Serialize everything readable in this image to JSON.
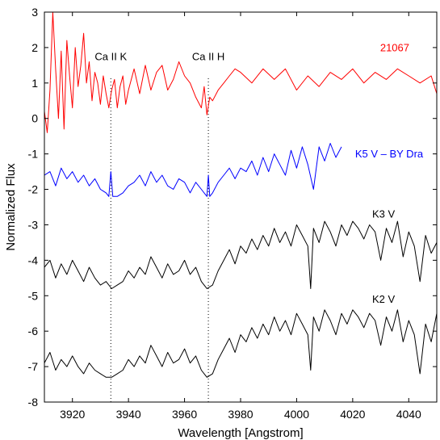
{
  "chart_data": {
    "type": "line",
    "xlabel": "Wavelength [Angstrom]",
    "ylabel": "Normalized Flux",
    "xlim": [
      3910,
      4050
    ],
    "ylim": [
      -8,
      3
    ],
    "xticks": [
      3920,
      3940,
      3960,
      3980,
      4000,
      4020,
      4040
    ],
    "yticks": [
      3,
      2,
      1,
      0,
      -1,
      -2,
      -3,
      -4,
      -5,
      -6,
      -7,
      -8
    ],
    "grid": false,
    "annotations": [
      {
        "text": "Ca II K",
        "x": 3933.7,
        "y": 1.65
      },
      {
        "text": "Ca II H",
        "x": 3968.5,
        "y": 1.65
      }
    ],
    "reference_lines": [
      {
        "x": 3933.7,
        "y_from": -8,
        "y_to": 1.15,
        "style": "dotted"
      },
      {
        "x": 3968.5,
        "y_from": -8,
        "y_to": 1.15,
        "style": "dotted"
      }
    ],
    "series": [
      {
        "name": "21067",
        "color": "#ff0000",
        "label_pos": [
          4035,
          1.9
        ],
        "x": [
          3910,
          3911,
          3912,
          3913,
          3914,
          3915,
          3916,
          3917,
          3918,
          3919,
          3920,
          3921,
          3922,
          3923,
          3924,
          3925,
          3926,
          3927,
          3928,
          3929,
          3930,
          3931,
          3932,
          3933,
          3934,
          3935,
          3936,
          3937,
          3938,
          3939,
          3940,
          3942,
          3944,
          3946,
          3948,
          3950,
          3952,
          3954,
          3956,
          3958,
          3960,
          3962,
          3964,
          3966,
          3967,
          3968,
          3969,
          3970,
          3972,
          3974,
          3976,
          3978,
          3980,
          3984,
          3988,
          3992,
          3996,
          4000,
          4004,
          4008,
          4012,
          4016,
          4020,
          4024,
          4028,
          4032,
          4036,
          4040,
          4044,
          4048,
          4050
        ],
        "values": [
          0.2,
          -0.4,
          0.8,
          3.0,
          1.4,
          0.0,
          1.9,
          -0.3,
          2.2,
          1.2,
          0.3,
          2.0,
          0.9,
          1.5,
          2.4,
          1.0,
          1.6,
          0.5,
          1.3,
          1.0,
          0.4,
          1.2,
          0.7,
          0.3,
          0.8,
          1.1,
          0.3,
          0.9,
          1.2,
          0.4,
          0.8,
          1.4,
          0.7,
          1.5,
          0.8,
          1.3,
          1.5,
          0.8,
          1.1,
          1.6,
          1.2,
          1.0,
          0.6,
          0.3,
          0.9,
          0.1,
          0.6,
          0.5,
          0.8,
          1.0,
          1.2,
          1.4,
          1.3,
          1.0,
          1.4,
          1.1,
          1.4,
          0.8,
          1.2,
          0.9,
          1.3,
          1.1,
          1.4,
          1.0,
          1.3,
          1.1,
          1.4,
          1.2,
          1.0,
          1.2,
          0.7
        ]
      },
      {
        "name": "K5 V – BY Dra",
        "color": "#0000ff",
        "label_pos": [
          4033,
          -1.1
        ],
        "x": [
          3910,
          3912,
          3914,
          3916,
          3918,
          3920,
          3922,
          3924,
          3926,
          3928,
          3930,
          3932,
          3933,
          3933.7,
          3934.4,
          3936,
          3938,
          3940,
          3942,
          3944,
          3946,
          3948,
          3950,
          3952,
          3954,
          3956,
          3958,
          3960,
          3962,
          3964,
          3966,
          3968,
          3968.5,
          3969,
          3970,
          3972,
          3974,
          3976,
          3978,
          3980,
          3982,
          3984,
          3986,
          3988,
          3990,
          3992,
          3994,
          3996,
          3998,
          4000,
          4002,
          4004,
          4006,
          4008,
          4010,
          4012,
          4014,
          4016
        ],
        "values": [
          -1.6,
          -1.5,
          -1.9,
          -1.4,
          -1.7,
          -1.5,
          -1.8,
          -1.6,
          -1.9,
          -1.7,
          -2.0,
          -2.1,
          -2.2,
          -1.5,
          -2.2,
          -2.2,
          -2.1,
          -1.9,
          -1.8,
          -1.6,
          -1.9,
          -1.5,
          -1.8,
          -1.6,
          -1.9,
          -2.0,
          -1.7,
          -1.8,
          -2.1,
          -1.8,
          -2.0,
          -2.2,
          -1.6,
          -2.2,
          -2.1,
          -1.8,
          -1.6,
          -1.4,
          -1.7,
          -1.4,
          -1.5,
          -1.2,
          -1.6,
          -1.1,
          -1.5,
          -1.0,
          -1.3,
          -1.6,
          -0.9,
          -1.4,
          -0.8,
          -1.3,
          -2.0,
          -0.8,
          -1.2,
          -0.7,
          -1.1,
          -0.8
        ]
      },
      {
        "name": "K3 V",
        "color": "#000000",
        "label_pos": [
          4031,
          -2.8
        ],
        "x": [
          3910,
          3912,
          3914,
          3916,
          3918,
          3920,
          3922,
          3924,
          3926,
          3928,
          3930,
          3932,
          3934,
          3936,
          3938,
          3940,
          3942,
          3944,
          3946,
          3948,
          3950,
          3952,
          3954,
          3956,
          3958,
          3960,
          3962,
          3964,
          3966,
          3968,
          3970,
          3972,
          3974,
          3976,
          3978,
          3980,
          3982,
          3984,
          3986,
          3988,
          3990,
          3992,
          3994,
          3996,
          3998,
          4000,
          4002,
          4004,
          4005,
          4006,
          4008,
          4010,
          4012,
          4014,
          4016,
          4018,
          4020,
          4022,
          4024,
          4026,
          4028,
          4030,
          4032,
          4034,
          4036,
          4038,
          4040,
          4042,
          4044,
          4046,
          4048,
          4050
        ],
        "values": [
          -4.2,
          -4.0,
          -4.5,
          -4.1,
          -4.4,
          -4.0,
          -4.3,
          -4.6,
          -4.2,
          -4.5,
          -4.7,
          -4.6,
          -4.8,
          -4.7,
          -4.6,
          -4.3,
          -4.5,
          -4.2,
          -4.4,
          -3.9,
          -4.2,
          -4.5,
          -4.1,
          -4.4,
          -4.3,
          -4.0,
          -4.4,
          -4.2,
          -4.6,
          -4.8,
          -4.7,
          -4.3,
          -4.0,
          -3.7,
          -4.1,
          -3.6,
          -3.8,
          -3.4,
          -3.7,
          -3.3,
          -3.6,
          -3.1,
          -3.5,
          -3.2,
          -3.6,
          -3.0,
          -3.3,
          -3.6,
          -4.8,
          -3.1,
          -3.5,
          -2.9,
          -3.2,
          -3.6,
          -3.0,
          -3.3,
          -2.9,
          -3.1,
          -3.4,
          -3.0,
          -3.2,
          -4.0,
          -3.1,
          -3.5,
          -2.9,
          -3.9,
          -3.2,
          -3.6,
          -4.6,
          -3.3,
          -3.8,
          -3.5
        ]
      },
      {
        "name": "K2 V",
        "color": "#000000",
        "label_pos": [
          4031,
          -5.2
        ],
        "x": [
          3910,
          3912,
          3914,
          3916,
          3918,
          3920,
          3922,
          3924,
          3926,
          3928,
          3930,
          3932,
          3934,
          3936,
          3938,
          3940,
          3942,
          3944,
          3946,
          3948,
          3950,
          3952,
          3954,
          3956,
          3958,
          3960,
          3962,
          3964,
          3966,
          3968,
          3970,
          3972,
          3974,
          3976,
          3978,
          3980,
          3982,
          3984,
          3986,
          3988,
          3990,
          3992,
          3994,
          3996,
          3998,
          4000,
          4002,
          4004,
          4005,
          4006,
          4008,
          4010,
          4012,
          4014,
          4016,
          4018,
          4020,
          4022,
          4024,
          4026,
          4028,
          4030,
          4032,
          4034,
          4036,
          4038,
          4040,
          4042,
          4044,
          4046,
          4048,
          4050
        ],
        "values": [
          -6.9,
          -6.6,
          -7.1,
          -6.8,
          -7.0,
          -6.7,
          -7.0,
          -7.2,
          -6.9,
          -7.1,
          -7.2,
          -7.3,
          -7.3,
          -7.2,
          -7.1,
          -6.8,
          -7.0,
          -6.7,
          -6.9,
          -6.4,
          -6.7,
          -7.0,
          -6.6,
          -6.9,
          -6.8,
          -6.5,
          -6.9,
          -6.7,
          -7.1,
          -7.3,
          -7.2,
          -6.8,
          -6.5,
          -6.2,
          -6.6,
          -6.1,
          -6.3,
          -5.9,
          -6.2,
          -5.8,
          -6.1,
          -5.6,
          -6.0,
          -5.7,
          -6.1,
          -5.5,
          -5.8,
          -6.1,
          -7.1,
          -5.6,
          -6.0,
          -5.4,
          -5.7,
          -6.1,
          -5.5,
          -5.8,
          -5.4,
          -5.6,
          -5.9,
          -5.5,
          -5.7,
          -6.4,
          -5.6,
          -6.0,
          -5.4,
          -6.3,
          -5.7,
          -6.1,
          -7.2,
          -5.8,
          -6.3,
          -5.5
        ]
      }
    ]
  }
}
